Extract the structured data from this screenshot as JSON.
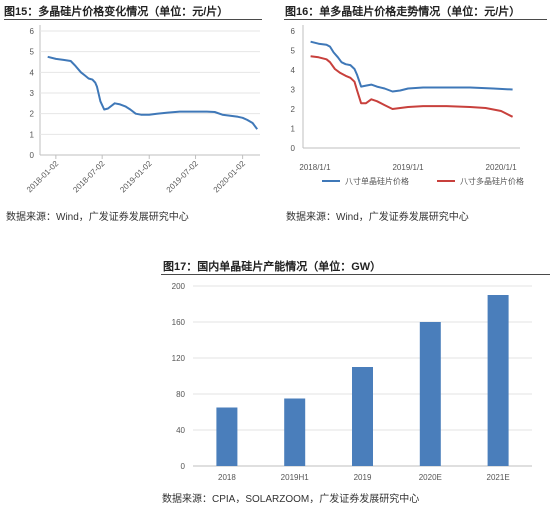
{
  "fig15": {
    "title": "图15：多晶硅片价格变化情况（单位：元/片）",
    "source": "数据来源：Wind，广发证券发展研究中心"
  },
  "fig16": {
    "title": "图16：单多晶硅片价格走势情况（单位：元/片）",
    "source": "数据来源：Wind，广发证券发展研究中心"
  },
  "fig17": {
    "title": "图17：国内单晶硅片产能情况（单位：GW）",
    "source": "数据来源：CPIA，SOLARZOOM，广发证券发展研究中心"
  },
  "chart_data": [
    {
      "id": "fig15",
      "type": "line",
      "title": "图15：多晶硅片价格变化情况（单位：元/片）",
      "ylim": [
        0,
        6
      ],
      "yticks": [
        0,
        1,
        2,
        3,
        4,
        5,
        6
      ],
      "xlim": [
        "2017-11-01",
        "2020-03-10"
      ],
      "xticks": [
        "2018-01-02",
        "2018-07-02",
        "2019-01-02",
        "2019-07-02",
        "2020-01-02"
      ],
      "grid": "horizontal",
      "colors": [
        "#3f78b8"
      ],
      "series": [
        {
          "x": [
            "2017-12-01",
            "2018-01-02",
            "2018-02-01",
            "2018-03-01",
            "2018-03-20",
            "2018-04-10",
            "2018-04-25",
            "2018-05-10",
            "2018-05-25",
            "2018-06-05",
            "2018-06-12",
            "2018-06-25",
            "2018-07-10",
            "2018-07-25",
            "2018-08-20",
            "2018-09-10",
            "2018-10-01",
            "2018-10-20",
            "2018-11-10",
            "2018-12-01",
            "2019-01-02",
            "2019-02-01",
            "2019-03-15",
            "2019-05-01",
            "2019-06-01",
            "2019-07-02",
            "2019-08-15",
            "2019-09-15",
            "2019-10-15",
            "2019-11-15",
            "2019-12-15",
            "2020-01-02",
            "2020-01-20",
            "2020-02-10",
            "2020-02-28"
          ],
          "y": [
            4.75,
            4.65,
            4.6,
            4.55,
            4.3,
            4.0,
            3.85,
            3.7,
            3.65,
            3.5,
            3.3,
            2.6,
            2.2,
            2.25,
            2.5,
            2.45,
            2.35,
            2.2,
            2.0,
            1.95,
            1.95,
            2.0,
            2.05,
            2.1,
            2.1,
            2.1,
            2.1,
            2.08,
            1.95,
            1.9,
            1.85,
            1.8,
            1.7,
            1.55,
            1.25
          ]
        }
      ]
    },
    {
      "id": "fig16",
      "type": "line",
      "title": "图16：单多晶硅片价格走势情况（单位：元/片）",
      "ylim": [
        0,
        6
      ],
      "yticks": [
        0,
        1,
        2,
        3,
        4,
        5,
        6
      ],
      "xlim": [
        "2017-11-15",
        "2020-03-15"
      ],
      "xticks": [
        "2018/1/1",
        "2019/1/1",
        "2020/1/1"
      ],
      "grid": "none",
      "legend": "bottom",
      "series": [
        {
          "name": "八寸单晶硅片价格",
          "color": "#3f78b8",
          "x": [
            "2017-12-15",
            "2018-01-15",
            "2018-02-15",
            "2018-03-01",
            "2018-03-15",
            "2018-04-01",
            "2018-04-15",
            "2018-05-01",
            "2018-05-20",
            "2018-06-05",
            "2018-06-15",
            "2018-07-01",
            "2018-07-20",
            "2018-08-10",
            "2018-09-01",
            "2018-10-01",
            "2018-11-01",
            "2018-12-01",
            "2019-01-01",
            "2019-03-01",
            "2019-06-01",
            "2019-09-01",
            "2019-12-01",
            "2020-02-15"
          ],
          "y": [
            5.45,
            5.35,
            5.3,
            5.2,
            4.9,
            4.65,
            4.4,
            4.3,
            4.25,
            4.05,
            3.75,
            3.15,
            3.2,
            3.25,
            3.15,
            3.05,
            2.9,
            2.95,
            3.05,
            3.1,
            3.1,
            3.1,
            3.05,
            3.0
          ]
        },
        {
          "name": "八寸多晶硅片价格",
          "color": "#c8403c",
          "x": [
            "2017-12-15",
            "2018-01-15",
            "2018-02-15",
            "2018-03-01",
            "2018-03-20",
            "2018-04-10",
            "2018-05-01",
            "2018-05-20",
            "2018-06-05",
            "2018-06-15",
            "2018-07-01",
            "2018-07-20",
            "2018-08-10",
            "2018-09-01",
            "2018-10-01",
            "2018-11-01",
            "2018-12-01",
            "2019-01-01",
            "2019-03-01",
            "2019-06-01",
            "2019-09-01",
            "2019-11-01",
            "2020-01-01",
            "2020-02-15"
          ],
          "y": [
            4.7,
            4.65,
            4.55,
            4.4,
            4.05,
            3.85,
            3.7,
            3.6,
            3.4,
            2.95,
            2.3,
            2.3,
            2.5,
            2.4,
            2.2,
            2.0,
            2.05,
            2.1,
            2.15,
            2.15,
            2.1,
            2.05,
            1.9,
            1.6
          ]
        }
      ]
    },
    {
      "id": "fig17",
      "type": "bar",
      "title": "图17：国内单晶硅片产能情况（单位：GW）",
      "categories": [
        "2018",
        "2019H1",
        "2019",
        "2020E",
        "2021E"
      ],
      "values": [
        65,
        75,
        110,
        160,
        190
      ],
      "ylim": [
        0,
        200
      ],
      "yticks": [
        0,
        40,
        80,
        120,
        160,
        200
      ],
      "grid": "horizontal",
      "colors": [
        "#4a7ebb"
      ]
    }
  ]
}
